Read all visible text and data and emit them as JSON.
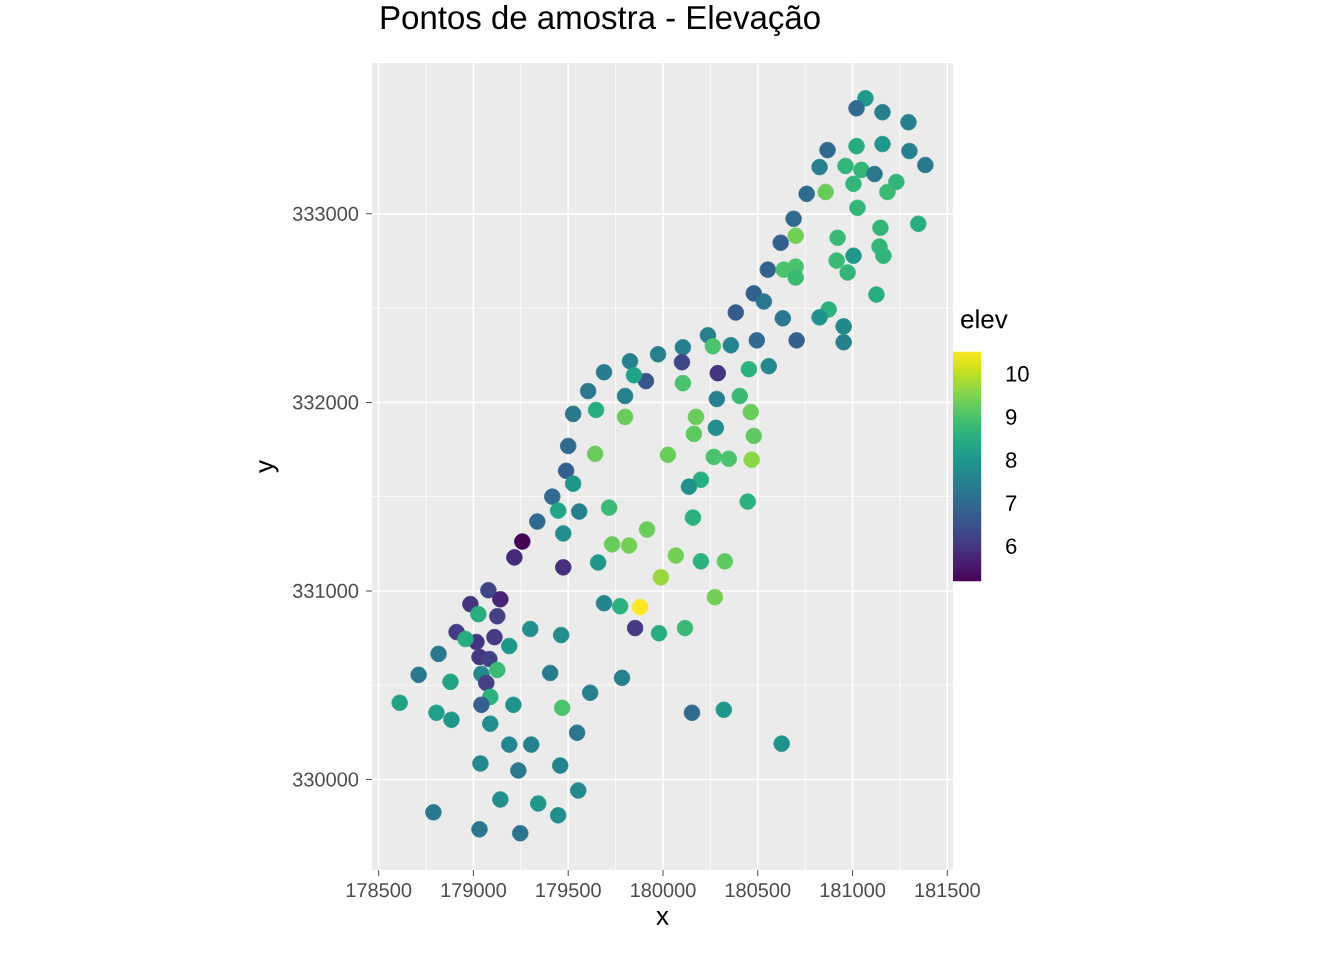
{
  "chart_data": {
    "type": "scatter",
    "title": "Pontos de amostra - Elevação",
    "xlabel": "x",
    "ylabel": "y",
    "clabel": "elev",
    "xlim": [
      178465,
      181530
    ],
    "ylim": [
      329520,
      333800
    ],
    "xticks": [
      178500,
      179000,
      179500,
      180000,
      180500,
      181000,
      181500
    ],
    "yticks": [
      330000,
      331000,
      332000,
      333000
    ],
    "clim": [
      5.18,
      10.52
    ],
    "cticks": [
      6,
      7,
      8,
      9,
      10
    ],
    "grid": true,
    "marker": "circle",
    "x": [
      181068,
      181021,
      181158,
      181295,
      180868,
      181021,
      181158,
      181300,
      180826,
      180963,
      181047,
      181116,
      181231,
      181384,
      181005,
      181184,
      180858,
      180758,
      181026,
      180689,
      181347,
      181147,
      180700,
      180621,
      180921,
      181142,
      181163,
      181005,
      180916,
      180553,
      180637,
      180700,
      180700,
      180974,
      180479,
      180532,
      181126,
      180384,
      180874,
      180632,
      180826,
      180953,
      180237,
      180263,
      180358,
      180495,
      180705,
      180953,
      180105,
      180100,
      179974,
      179826,
      179689,
      180289,
      180453,
      180558,
      179910,
      179847,
      180105,
      179605,
      179800,
      180405,
      180284,
      179526,
      179647,
      179800,
      180174,
      180463,
      180163,
      180279,
      180479,
      179500,
      179642,
      180026,
      180268,
      180347,
      180468,
      179489,
      179526,
      180200,
      180137,
      179416,
      179447,
      179558,
      179716,
      180447,
      180158,
      179337,
      179474,
      179916,
      179258,
      179732,
      179821,
      179216,
      180068,
      179658,
      180200,
      180326,
      179474,
      179989,
      179879,
      179079,
      178984,
      179142,
      179689,
      179774,
      180274,
      179026,
      179126,
      178911,
      179016,
      178958,
      179111,
      179853,
      179979,
      180116,
      179300,
      179463,
      179189,
      178816,
      179032,
      179084,
      179126,
      179042,
      178711,
      179068,
      179405,
      178879,
      179784,
      179616,
      179089,
      178611,
      179042,
      179211,
      179468,
      180153,
      180321,
      178805,
      178884,
      179089,
      179547,
      179189,
      179305,
      180626,
      179037,
      179458,
      179237,
      179553,
      179142,
      179342,
      179447,
      178789,
      179032,
      179247
    ],
    "values": [
      333613,
      333560,
      333539,
      333486,
      333338,
      333359,
      333370,
      333333,
      333248,
      333254,
      333233,
      333211,
      333169,
      333259,
      333159,
      333116,
      333116,
      333106,
      333032,
      332974,
      332947,
      332926,
      332884,
      332847,
      332873,
      332826,
      332778,
      332778,
      332752,
      332704,
      332704,
      332720,
      332662,
      332689,
      332578,
      332535,
      332572,
      332477,
      332493,
      332446,
      332451,
      332403,
      332356,
      332298,
      332303,
      332329,
      332329,
      332319,
      332292,
      332213,
      332255,
      332218,
      332160,
      332155,
      332176,
      332192,
      332113,
      332144,
      332102,
      332060,
      332034,
      332034,
      332018,
      331939,
      331960,
      331923,
      331923,
      331949,
      331833,
      331865,
      331822,
      331769,
      331727,
      331722,
      331711,
      331701,
      331696,
      331637,
      331569,
      331590,
      331553,
      331500,
      331426,
      331421,
      331442,
      331474,
      331389,
      331368,
      331305,
      331326,
      331262,
      331247,
      331241,
      331178,
      331188,
      331151,
      331157,
      331157,
      331125,
      331072,
      330914,
      331004,
      330930,
      330956,
      330935,
      330919,
      330967,
      330877,
      330866,
      330782,
      330729,
      330745,
      330755,
      330803,
      330776,
      330803,
      330798,
      330766,
      330708,
      330666,
      330650,
      330639,
      330581,
      330560,
      330555,
      330512,
      330565,
      330518,
      330539,
      330460,
      330438,
      330407,
      330396,
      330396,
      330380,
      330354,
      330370,
      330354,
      330317,
      330296,
      330248,
      330185,
      330185,
      330190,
      330085,
      330074,
      330048,
      329942,
      329894,
      329873,
      329810,
      329826,
      329736,
      329715
    ],
    "cvalues": [
      8,
      7,
      7.5,
      7.5,
      7,
      8.5,
      8,
      7.5,
      7.5,
      8.7,
      8.7,
      7.3,
      8.7,
      7.3,
      8.7,
      8.8,
      9.3,
      7,
      8.7,
      7,
      8.5,
      8.7,
      9.4,
      6.8,
      8.8,
      8.7,
      8.7,
      8,
      8.8,
      6.8,
      9,
      9,
      8.8,
      8.7,
      6.8,
      7.3,
      8.5,
      6.7,
      8.6,
      7.3,
      7.9,
      7.7,
      7.5,
      9,
      7.6,
      7,
      6.8,
      7.5,
      7.5,
      6.3,
      7.5,
      7.5,
      7.4,
      6,
      8.6,
      7.7,
      6.6,
      8.3,
      9,
      7.3,
      7.5,
      8.8,
      7.5,
      7.3,
      8.5,
      9.3,
      9.3,
      9.3,
      9.2,
      7.8,
      9.2,
      7,
      9.3,
      9.3,
      9,
      9,
      9.6,
      6.8,
      8,
      8.5,
      7.9,
      7,
      8.3,
      7.5,
      8.8,
      8.6,
      8.6,
      7,
      7.8,
      9.3,
      5.2,
      9.3,
      9.4,
      5.8,
      9.4,
      8,
      8.6,
      9.2,
      5.9,
      9.7,
      10.5,
      6.3,
      6,
      5.7,
      7.6,
      8.6,
      9.4,
      8.5,
      6.2,
      6.1,
      6,
      8.5,
      6.1,
      6.1,
      8.5,
      8.8,
      7.8,
      7.8,
      8,
      7.3,
      6,
      6.2,
      8.8,
      7.7,
      7.3,
      6.2,
      7.4,
      8.3,
      7.5,
      7.5,
      8.6,
      8.3,
      6.8,
      7.9,
      9,
      7,
      8,
      8.2,
      8,
      7.8,
      7.3,
      7.6,
      7.5,
      7.9,
      7.7,
      7.6,
      7.3,
      7.7,
      7.8,
      8,
      7.8,
      7.3,
      7.3,
      7.2
    ]
  }
}
